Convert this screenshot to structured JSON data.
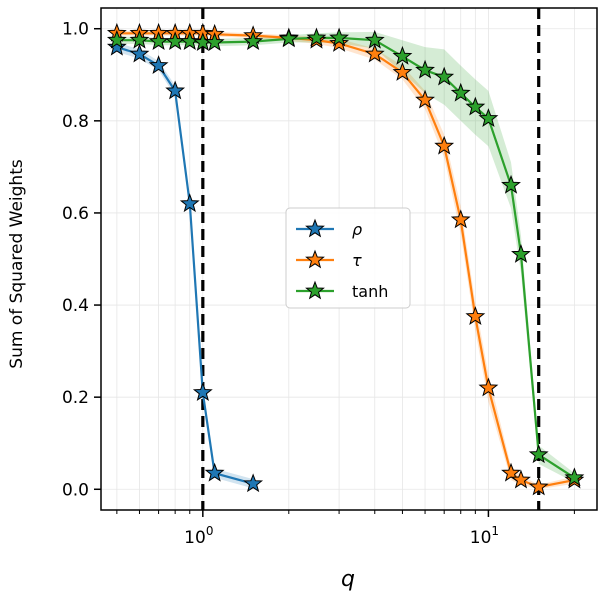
{
  "chart_data": {
    "type": "line",
    "title": "",
    "xlabel": "q",
    "ylabel": "Sum of Squared Weights",
    "xscale": "log",
    "xlim": [
      0.44,
      24.0
    ],
    "ylim": [
      -0.045,
      1.045
    ],
    "grid": true,
    "legend_position": "center",
    "x_ticks": [
      {
        "value": 1,
        "base": "10",
        "exp": "0"
      },
      {
        "value": 10,
        "base": "10",
        "exp": "1"
      }
    ],
    "y_ticks": [
      {
        "value": 0.0,
        "label": "0.0"
      },
      {
        "value": 0.2,
        "label": "0.2"
      },
      {
        "value": 0.4,
        "label": "0.4"
      },
      {
        "value": 0.6,
        "label": "0.6"
      },
      {
        "value": 0.8,
        "label": "0.8"
      },
      {
        "value": 1.0,
        "label": "1.0"
      }
    ],
    "vlines": [
      1.0,
      15.0
    ],
    "series": [
      {
        "name": "ρ",
        "color": "#1f77b4",
        "x": [
          0.5,
          0.6,
          0.7,
          0.8,
          0.9,
          1.0,
          1.1,
          1.5
        ],
        "y": [
          0.96,
          0.945,
          0.92,
          0.865,
          0.62,
          0.21,
          0.035,
          0.012
        ],
        "band": [
          0.01,
          0.01,
          0.01,
          0.012,
          0.015,
          0.015,
          0.01,
          0.01
        ]
      },
      {
        "name": "τ",
        "color": "#ff7f0e",
        "x": [
          0.5,
          0.6,
          0.7,
          0.8,
          0.9,
          1.0,
          1.1,
          1.5,
          2.0,
          2.5,
          3.0,
          4.0,
          5.0,
          6.0,
          7.0,
          8.0,
          9.0,
          10.0,
          12.0,
          13.0,
          15.0,
          20.0
        ],
        "y": [
          0.99,
          0.99,
          0.99,
          0.99,
          0.99,
          0.99,
          0.988,
          0.985,
          0.98,
          0.975,
          0.968,
          0.945,
          0.905,
          0.845,
          0.745,
          0.585,
          0.375,
          0.22,
          0.035,
          0.02,
          0.005,
          0.02
        ],
        "band": [
          0.005,
          0.005,
          0.005,
          0.005,
          0.005,
          0.005,
          0.005,
          0.005,
          0.006,
          0.008,
          0.01,
          0.012,
          0.015,
          0.02,
          0.025,
          0.03,
          0.03,
          0.03,
          0.015,
          0.01,
          0.005,
          0.008
        ]
      },
      {
        "name": "tanh",
        "color": "#2ca02c",
        "x": [
          0.5,
          0.6,
          0.7,
          0.8,
          0.9,
          1.0,
          1.1,
          1.5,
          2.0,
          2.5,
          3.0,
          4.0,
          5.0,
          6.0,
          7.0,
          8.0,
          9.0,
          10.0,
          12.0,
          13.0,
          15.0,
          20.0
        ],
        "y": [
          0.975,
          0.975,
          0.972,
          0.972,
          0.972,
          0.97,
          0.97,
          0.972,
          0.978,
          0.98,
          0.98,
          0.975,
          0.94,
          0.91,
          0.895,
          0.86,
          0.83,
          0.805,
          0.66,
          0.51,
          0.075,
          0.025
        ],
        "band": [
          0.008,
          0.008,
          0.008,
          0.008,
          0.008,
          0.008,
          0.008,
          0.008,
          0.008,
          0.01,
          0.012,
          0.018,
          0.035,
          0.05,
          0.06,
          0.06,
          0.06,
          0.06,
          0.05,
          0.04,
          0.02,
          0.01
        ]
      }
    ]
  }
}
